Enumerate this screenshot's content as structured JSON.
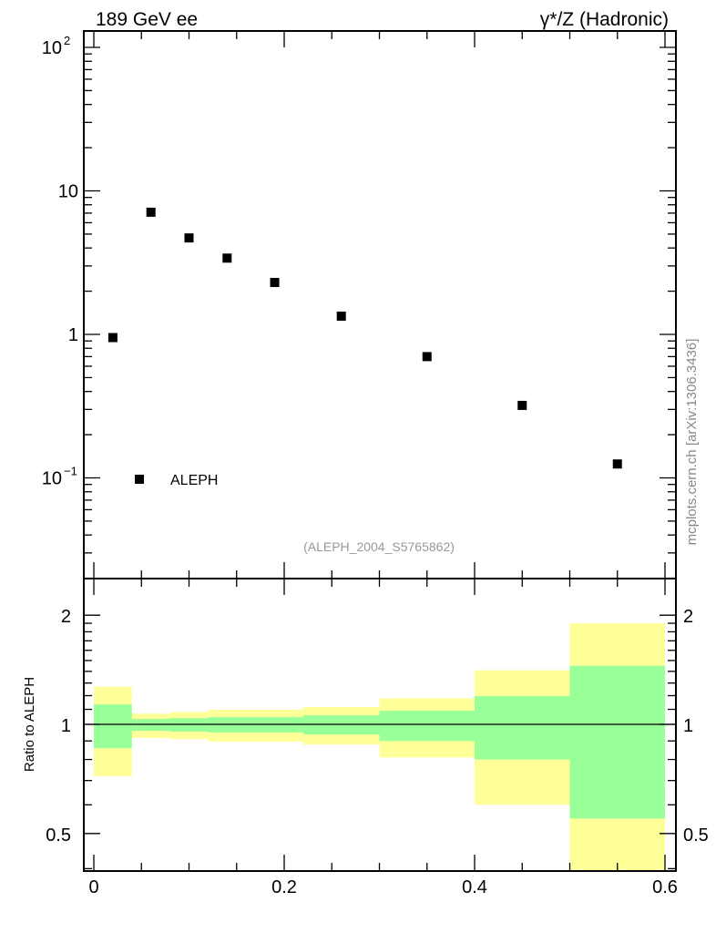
{
  "chart_data": [
    {
      "type": "scatter",
      "title_left": "189 GeV ee",
      "title_right": "γ*/Z (Hadronic)",
      "yscale": "log",
      "ylim": [
        0.02,
        128
      ],
      "xlim": [
        -0.01,
        0.61
      ],
      "ytick_labels": [
        {
          "value": 100,
          "base": "10",
          "exp": "2"
        },
        {
          "value": 10,
          "base": "10",
          "exp": ""
        },
        {
          "value": 1,
          "base": "1",
          "exp": ""
        },
        {
          "value": 0.1,
          "base": "10",
          "exp": "−1"
        }
      ],
      "series": [
        {
          "name": "ALEPH",
          "marker": "square",
          "color": "#000000",
          "x": [
            0.02,
            0.06,
            0.1,
            0.14,
            0.19,
            0.26,
            0.35,
            0.45,
            0.55
          ],
          "y": [
            0.95,
            7.1,
            4.7,
            3.4,
            2.3,
            1.34,
            0.7,
            0.32,
            0.125
          ]
        }
      ],
      "legend": {
        "label": "ALEPH",
        "placement": "bottom-left"
      },
      "watermark": "(ALEPH_2004_S5765862)",
      "side_label": "mcplots.cern.ch [arXiv:1306.3436]"
    },
    {
      "type": "area",
      "ylabel": "Ratio to ALEPH",
      "yscale": "log",
      "ylim": [
        0.4,
        2.5
      ],
      "xlim": [
        -0.01,
        0.61
      ],
      "ytick_labels": [
        "2",
        "1",
        "0.5"
      ],
      "ytick_values": [
        2,
        1,
        0.5
      ],
      "xtick_labels": [
        "0",
        "0.2",
        "0.4",
        "0.6"
      ],
      "xtick_values": [
        0,
        0.2,
        0.4,
        0.6
      ],
      "bin_edges": [
        0,
        0.04,
        0.08,
        0.12,
        0.22,
        0.3,
        0.4,
        0.5,
        0.6
      ],
      "band_outer": {
        "color": "#ffff99",
        "low": [
          0.72,
          0.917,
          0.91,
          0.896,
          0.88,
          0.81,
          0.6,
          0.3
        ],
        "high": [
          1.27,
          1.07,
          1.08,
          1.097,
          1.116,
          1.18,
          1.41,
          1.9
        ]
      },
      "band_inner": {
        "color": "#99ff99",
        "low": [
          0.86,
          0.96,
          0.955,
          0.95,
          0.938,
          0.9,
          0.8,
          0.55
        ],
        "high": [
          1.135,
          1.035,
          1.04,
          1.047,
          1.06,
          1.09,
          1.196,
          1.45
        ]
      },
      "reference_line": 1
    }
  ]
}
